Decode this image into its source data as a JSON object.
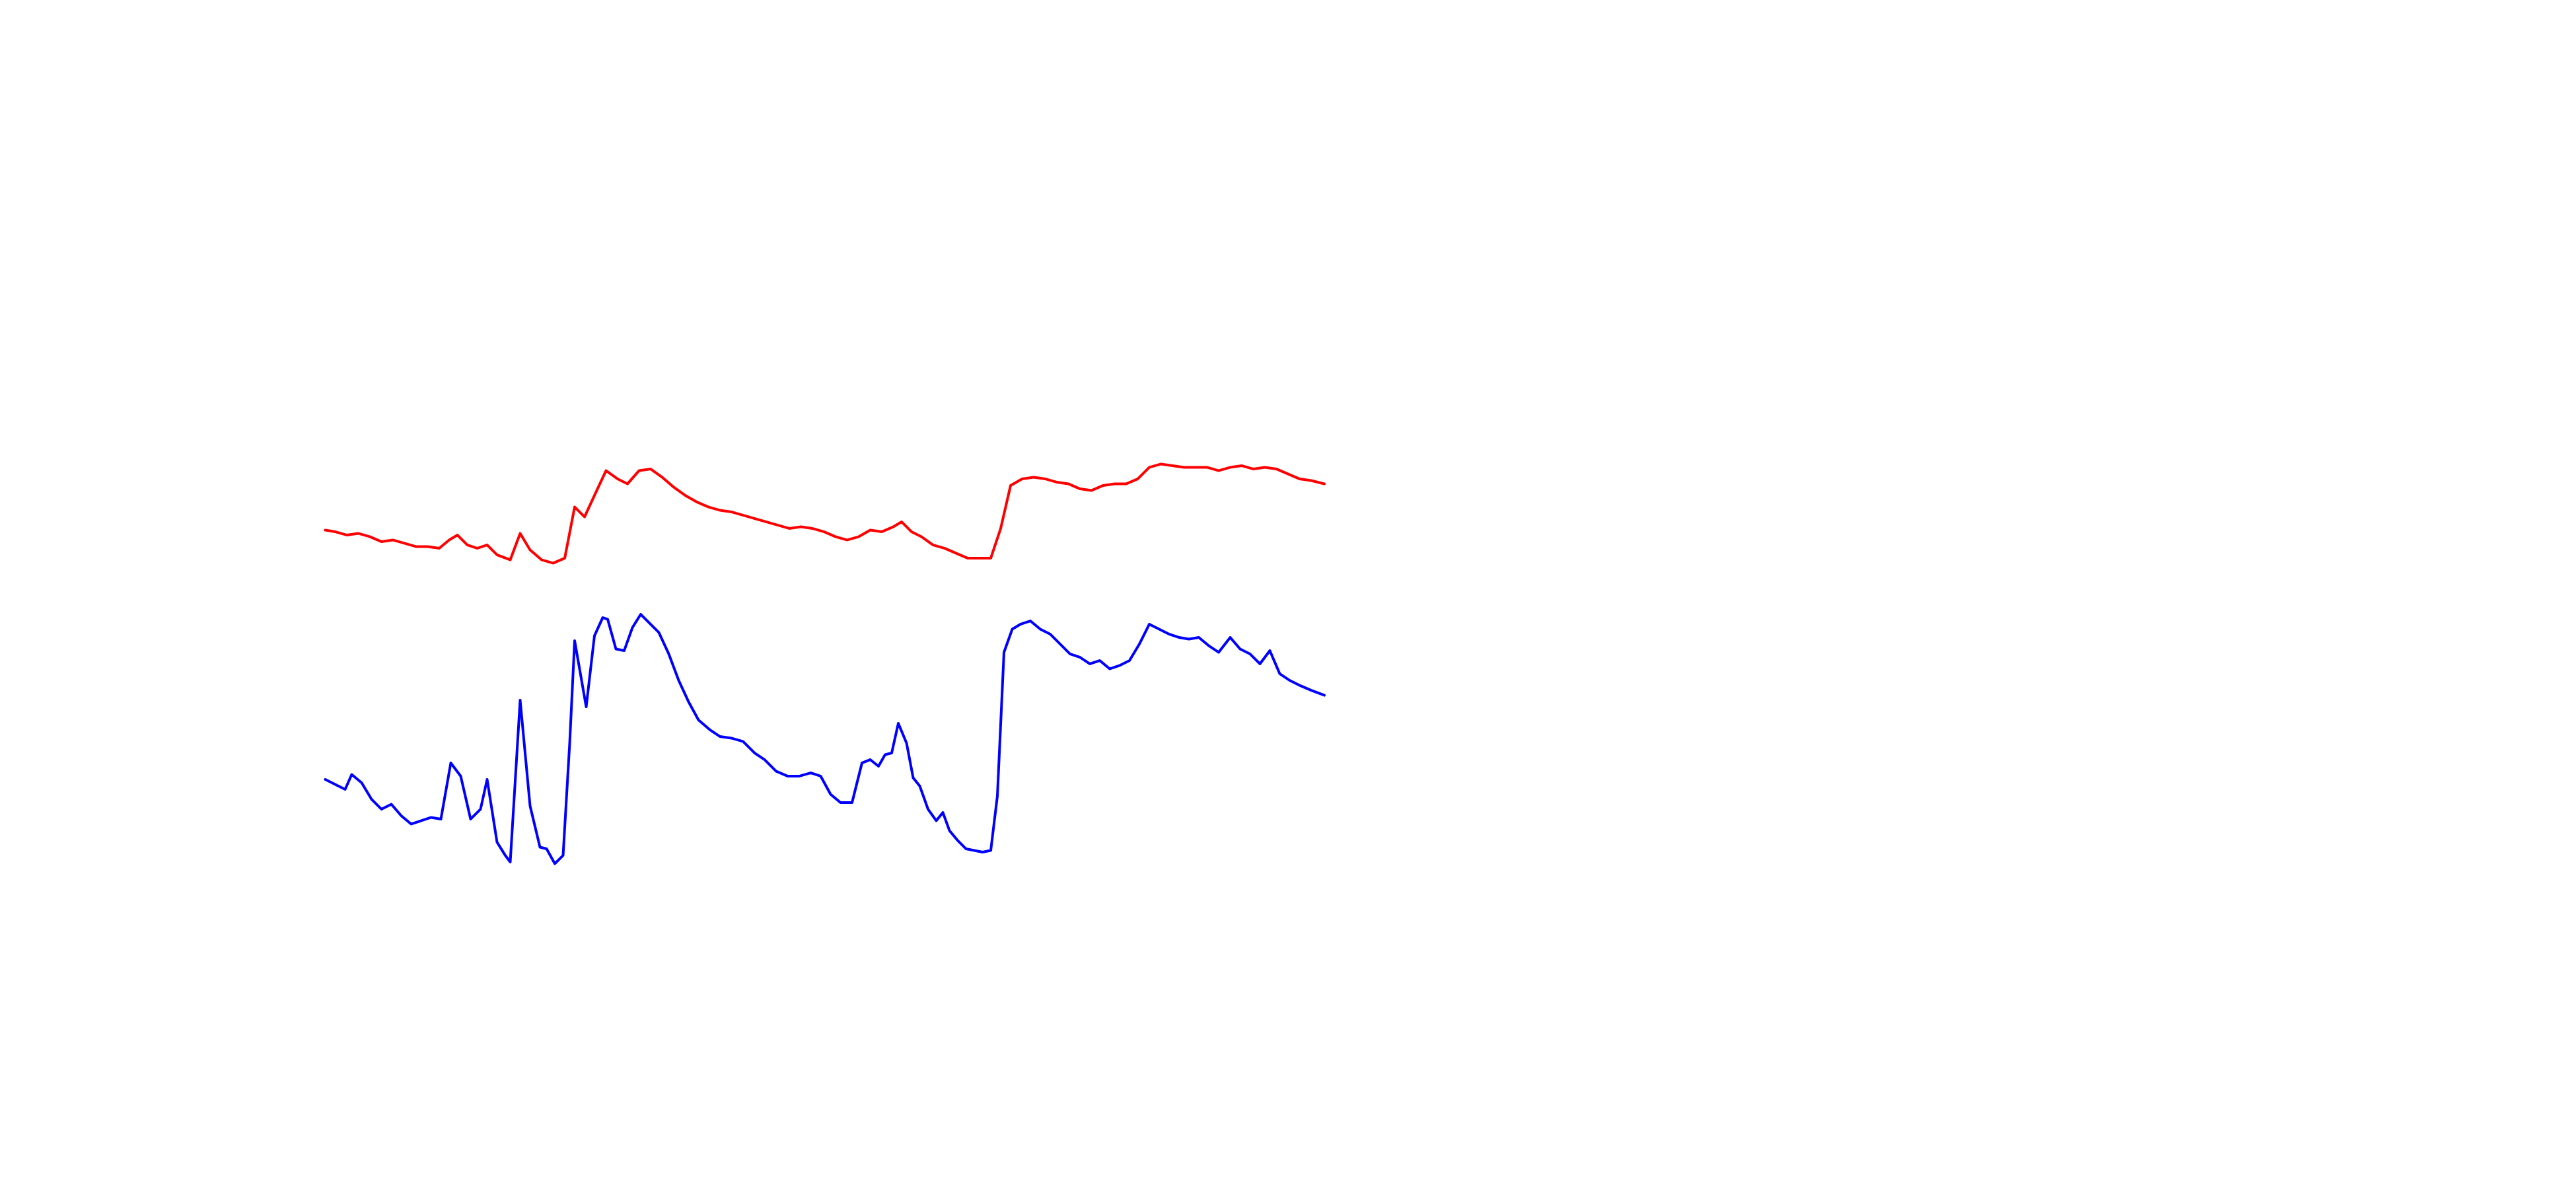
{
  "chart_data": {
    "type": "line",
    "series": [
      {
        "color": "#ff0000",
        "x": [
          197,
          203,
          210,
          217,
          224,
          231,
          238,
          245,
          252,
          259,
          266,
          272,
          277,
          283,
          289,
          295,
          301,
          309,
          315,
          321,
          328,
          335,
          342,
          348,
          354,
          360,
          367,
          374,
          380,
          387,
          394,
          401,
          408,
          415,
          422,
          429,
          436,
          443,
          450,
          457,
          464,
          471,
          478,
          485,
          492,
          499,
          506,
          513,
          520,
          527,
          534,
          541,
          546,
          552,
          558,
          565,
          572,
          579,
          586,
          593,
          600,
          606,
          612,
          619,
          626,
          633,
          640,
          647,
          654,
          661,
          668,
          675,
          682,
          689,
          696,
          703,
          710,
          717,
          724,
          731,
          738,
          745,
          752,
          759,
          766,
          773,
          780,
          787,
          794,
          802
        ],
        "values": [
          279,
          278,
          276,
          277,
          275,
          272,
          273,
          271,
          269,
          269,
          268,
          273,
          276,
          270,
          268,
          270,
          264,
          261,
          277,
          267,
          261,
          259,
          262,
          293,
          287,
          300,
          315,
          310,
          307,
          315,
          316,
          311,
          305,
          300,
          296,
          293,
          291,
          290,
          288,
          286,
          284,
          282,
          280,
          281,
          280,
          278,
          275,
          273,
          275,
          279,
          278,
          281,
          284,
          278,
          275,
          270,
          268,
          265,
          262,
          262,
          262,
          280,
          306,
          310,
          311,
          310,
          308,
          307,
          304,
          303,
          306,
          307,
          307,
          310,
          317,
          319,
          318,
          317,
          317,
          317,
          315,
          317,
          318,
          316,
          317,
          316,
          313,
          310,
          309,
          307
        ]
      },
      {
        "color": "#0000ff",
        "x": [
          197,
          203,
          209,
          213,
          219,
          225,
          231,
          237,
          243,
          249,
          255,
          261,
          267,
          273,
          279,
          285,
          291,
          295,
          301,
          306,
          309,
          315,
          321,
          327,
          331,
          336,
          341,
          345,
          348,
          355,
          360,
          365,
          368,
          373,
          378,
          383,
          388,
          393,
          399,
          405,
          411,
          417,
          423,
          430,
          436,
          443,
          450,
          457,
          463,
          470,
          477,
          484,
          491,
          497,
          503,
          509,
          516,
          522,
          527,
          532,
          536,
          540,
          544,
          549,
          553,
          557,
          562,
          567,
          571,
          575,
          580,
          585,
          590,
          595,
          600,
          604,
          608,
          613,
          618,
          624,
          630,
          636,
          642,
          648,
          654,
          660,
          666,
          672,
          678,
          684,
          690,
          696,
          702,
          708,
          714,
          720,
          726,
          732,
          738,
          745,
          751,
          757,
          763,
          769,
          775,
          781,
          787,
          794,
          802
        ],
        "values": [
          128,
          125,
          122,
          131,
          126,
          116,
          110,
          113,
          106,
          101,
          103,
          105,
          104,
          138,
          130,
          104,
          110,
          128,
          90,
          82,
          78,
          176,
          112,
          87,
          86,
          77,
          82,
          150,
          212,
          172,
          215,
          226,
          225,
          207,
          206,
          220,
          228,
          223,
          217,
          204,
          188,
          175,
          164,
          158,
          154,
          153,
          151,
          144,
          140,
          133,
          130,
          130,
          132,
          130,
          119,
          114,
          114,
          138,
          140,
          136,
          143,
          144,
          162,
          150,
          129,
          124,
          110,
          103,
          108,
          97,
          91,
          86,
          85,
          84,
          85,
          118,
          205,
          219,
          222,
          224,
          219,
          216,
          210,
          204,
          202,
          198,
          200,
          195,
          197,
          200,
          210,
          222,
          219,
          216,
          214,
          213,
          214,
          209,
          205,
          214,
          207,
          204,
          198,
          206,
          192,
          188,
          185,
          182,
          179
        ]
      }
    ]
  }
}
